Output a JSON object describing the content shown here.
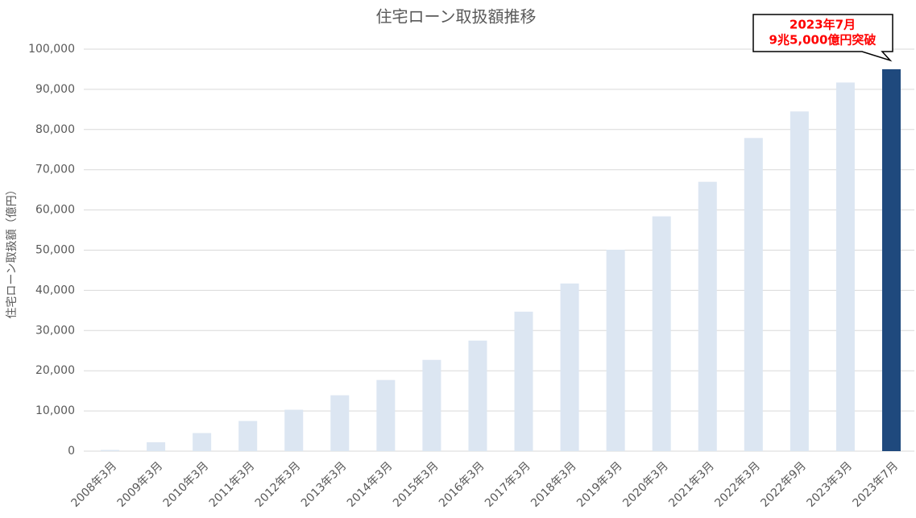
{
  "chart_data": {
    "type": "bar",
    "title": "住宅ローン取扱額推移",
    "y_label": "住宅ローン取扱額（億円）",
    "categories": [
      "2008年3月",
      "2009年3月",
      "2010年3月",
      "2011年3月",
      "2012年3月",
      "2013年3月",
      "2014年3月",
      "2015年3月",
      "2016年3月",
      "2017年3月",
      "2018年3月",
      "2019年3月",
      "2020年3月",
      "2021年3月",
      "2022年3月",
      "2022年9月",
      "2023年3月",
      "2023年7月"
    ],
    "values": [
      300,
      2200,
      4500,
      7500,
      10300,
      13900,
      17700,
      22700,
      27500,
      34700,
      41700,
      50100,
      58400,
      67000,
      77900,
      84500,
      91700,
      95000
    ],
    "colors": [
      "#dce6f2",
      "#dce6f2",
      "#dce6f2",
      "#dce6f2",
      "#dce6f2",
      "#dce6f2",
      "#dce6f2",
      "#dce6f2",
      "#dce6f2",
      "#dce6f2",
      "#dce6f2",
      "#dce6f2",
      "#dce6f2",
      "#dce6f2",
      "#dce6f2",
      "#dce6f2",
      "#dce6f2",
      "#1f497d"
    ],
    "ylim": [
      0,
      100000
    ],
    "yticks": [
      0,
      {
        "value": 10000,
        "label": "10,000"
      },
      {
        "value": 20000,
        "label": "20,000"
      },
      {
        "value": 30000,
        "label": "30,000"
      },
      {
        "value": 40000,
        "label": "40,000"
      },
      {
        "value": 50000,
        "label": "50,000"
      },
      {
        "value": 60000,
        "label": "60,000"
      },
      {
        "value": 70000,
        "label": "70,000"
      },
      {
        "value": 80000,
        "label": "80,000"
      },
      {
        "value": 90000,
        "label": "90,000"
      },
      {
        "value": 100000,
        "label": "100,000"
      }
    ],
    "grid": true,
    "annotation": [
      "2023年7月",
      "9兆5,000億円突破"
    ]
  }
}
